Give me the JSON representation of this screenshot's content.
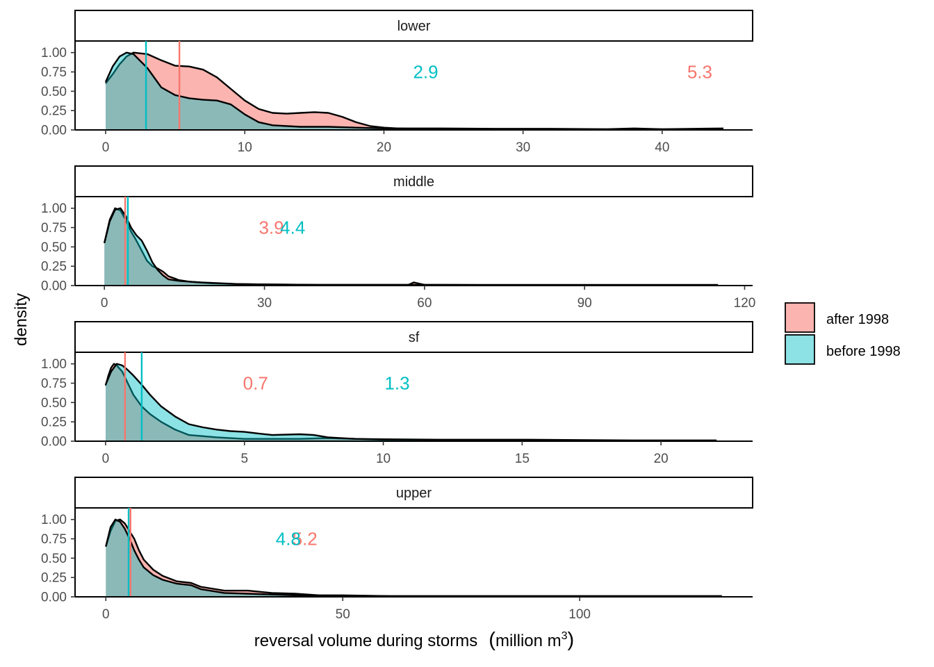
{
  "chart_data": {
    "type": "area",
    "subtype": "faceted density",
    "xlabel": "reversal volume during storms",
    "xlabel_unit_text": "million m",
    "xlabel_unit_sup": "3",
    "ylabel": "density",
    "grid": false,
    "legend_position": "right",
    "legend": [
      {
        "name": "after 1998",
        "color": "#F8766D"
      },
      {
        "name": "before 1998",
        "color": "#00BFC4"
      }
    ],
    "colors": {
      "after": "#F8766D",
      "before": "#00BFC4",
      "after_fill": "#F8766D",
      "before_fill": "#00BFC4",
      "outline": "#000000"
    },
    "y_ticks": [
      0,
      0.25,
      0.5,
      0.75,
      1.0
    ],
    "y_tick_labels": [
      "0.00",
      "0.25",
      "0.50",
      "0.75",
      "1.00"
    ],
    "ylim": [
      0,
      1.15
    ],
    "panels": [
      {
        "name": "lower",
        "xlim": [
          -2.2,
          46.5
        ],
        "x_ticks": [
          0,
          10,
          20,
          30,
          40
        ],
        "x_tick_labels": [
          "0",
          "10",
          "20",
          "30",
          "40"
        ],
        "median_label_y": 0.75,
        "series": [
          {
            "name": "after 1998",
            "median": 5.3,
            "median_label": "5.3",
            "median_label_x": 42.7,
            "x": [
              0,
              0.5,
              1,
              1.5,
              2,
              3,
              4,
              5,
              6,
              7,
              8,
              9,
              10,
              11,
              12,
              13,
              14,
              15,
              16,
              17,
              18,
              19,
              20,
              21,
              22,
              24,
              26,
              30,
              35,
              40,
              44.4
            ],
            "y": [
              0.6,
              0.72,
              0.85,
              0.95,
              1.0,
              0.98,
              0.9,
              0.83,
              0.82,
              0.78,
              0.68,
              0.53,
              0.38,
              0.27,
              0.22,
              0.21,
              0.22,
              0.23,
              0.22,
              0.17,
              0.1,
              0.05,
              0.03,
              0.02,
              0.015,
              0.01,
              0.01,
              0.008,
              0.008,
              0.008,
              0.008
            ]
          },
          {
            "name": "before 1998",
            "median": 2.9,
            "median_label": "2.9",
            "median_label_x": 23,
            "x": [
              0,
              0.5,
              1,
              1.5,
              2,
              3,
              4,
              5,
              6,
              7,
              8,
              9,
              10,
              11,
              12,
              14,
              16,
              18,
              20,
              22,
              24,
              28,
              32,
              36,
              38,
              40,
              44.4
            ],
            "y": [
              0.62,
              0.82,
              0.95,
              1.0,
              0.98,
              0.8,
              0.55,
              0.45,
              0.41,
              0.39,
              0.38,
              0.33,
              0.2,
              0.1,
              0.06,
              0.04,
              0.04,
              0.03,
              0.02,
              0.02,
              0.02,
              0.015,
              0.015,
              0.01,
              0.02,
              0.01,
              0.02
            ]
          }
        ]
      },
      {
        "name": "middle",
        "xlim": [
          -5.5,
          121.5
        ],
        "x_ticks": [
          0,
          30,
          60,
          90,
          120
        ],
        "x_tick_labels": [
          "0",
          "30",
          "60",
          "90",
          "120"
        ],
        "median_label_y": 0.75,
        "series": [
          {
            "name": "after 1998",
            "median": 3.9,
            "median_label": "3.9",
            "median_label_x": 31.3,
            "x": [
              0,
              1,
              2,
              3,
              4,
              5,
              6,
              7,
              8,
              9,
              10,
              11,
              12,
              14,
              16,
              18,
              20,
              25,
              30,
              40,
              50,
              57,
              58,
              60,
              70,
              80,
              100,
              115
            ],
            "y": [
              0.55,
              0.85,
              1.0,
              0.97,
              0.85,
              0.7,
              0.58,
              0.45,
              0.32,
              0.25,
              0.22,
              0.18,
              0.12,
              0.07,
              0.05,
              0.04,
              0.03,
              0.02,
              0.015,
              0.01,
              0.01,
              0.01,
              0.04,
              0.01,
              0.008,
              0.008,
              0.008,
              0.008
            ]
          },
          {
            "name": "before 1998",
            "median": 4.4,
            "median_label": "4.4",
            "median_label_x": 35.3,
            "x": [
              0,
              1,
              2,
              3,
              4,
              5,
              6,
              7,
              8,
              9,
              10,
              11,
              12,
              14,
              16,
              18,
              20,
              25,
              30,
              40,
              50,
              60,
              70,
              80,
              100,
              115
            ],
            "y": [
              0.55,
              0.83,
              0.98,
              1.0,
              0.9,
              0.75,
              0.65,
              0.58,
              0.45,
              0.3,
              0.2,
              0.13,
              0.08,
              0.06,
              0.05,
              0.04,
              0.035,
              0.02,
              0.015,
              0.01,
              0.01,
              0.01,
              0.008,
              0.008,
              0.008,
              0.008
            ]
          }
        ]
      },
      {
        "name": "sf",
        "xlim": [
          -1.1,
          23.3
        ],
        "x_ticks": [
          0,
          5,
          10,
          15,
          20
        ],
        "x_tick_labels": [
          "0",
          "5",
          "10",
          "15",
          "20"
        ],
        "median_label_y": 0.75,
        "series": [
          {
            "name": "after 1998",
            "median": 0.7,
            "median_label": "0.7",
            "median_label_x": 5.4,
            "x": [
              0,
              0.1,
              0.2,
              0.3,
              0.4,
              0.6,
              0.8,
              1.0,
              1.3,
              1.6,
              2.0,
              2.5,
              3.0,
              4.0,
              5.0,
              6.0,
              7.0,
              8.0,
              9.0,
              10,
              12,
              15,
              17,
              19,
              20,
              22
            ],
            "y": [
              0.72,
              0.85,
              0.95,
              1.0,
              0.98,
              0.9,
              0.75,
              0.6,
              0.45,
              0.35,
              0.25,
              0.15,
              0.08,
              0.05,
              0.03,
              0.03,
              0.03,
              0.04,
              0.03,
              0.02,
              0.01,
              0.01,
              0.01,
              0.01,
              0.01,
              0.01
            ]
          },
          {
            "name": "before 1998",
            "median": 1.3,
            "median_label": "1.3",
            "median_label_x": 10.5,
            "x": [
              0,
              0.2,
              0.4,
              0.6,
              0.8,
              1.0,
              1.3,
              1.6,
              2.0,
              2.5,
              3.0,
              3.5,
              4.0,
              4.5,
              5.0,
              5.5,
              6.0,
              7.0,
              7.5,
              8.0,
              9.0,
              10,
              12,
              15,
              17,
              19,
              22
            ],
            "y": [
              0.73,
              0.9,
              1.0,
              0.98,
              0.92,
              0.85,
              0.73,
              0.6,
              0.45,
              0.32,
              0.22,
              0.18,
              0.15,
              0.13,
              0.12,
              0.1,
              0.08,
              0.09,
              0.08,
              0.05,
              0.03,
              0.025,
              0.02,
              0.02,
              0.015,
              0.01,
              0.01
            ]
          }
        ]
      },
      {
        "name": "upper",
        "xlim": [
          -6.5,
          136.5
        ],
        "x_ticks": [
          0,
          50,
          100
        ],
        "x_tick_labels": [
          "0",
          "50",
          "100"
        ],
        "median_label_y": 0.75,
        "series": [
          {
            "name": "after 1998",
            "median": 5.2,
            "median_label": "5.2",
            "median_label_x": 42,
            "x": [
              0,
              1,
              2,
              3,
              4,
              5,
              6,
              7,
              8,
              10,
              12,
              15,
              18,
              20,
              25,
              30,
              35,
              40,
              45,
              50,
              60,
              70,
              80,
              100,
              120,
              130
            ],
            "y": [
              0.65,
              0.85,
              0.98,
              1.0,
              0.95,
              0.85,
              0.75,
              0.6,
              0.48,
              0.35,
              0.27,
              0.2,
              0.18,
              0.13,
              0.08,
              0.08,
              0.05,
              0.04,
              0.02,
              0.02,
              0.01,
              0.01,
              0.01,
              0.01,
              0.01,
              0.01
            ]
          },
          {
            "name": "before 1998",
            "median": 4.8,
            "median_label": "4.8",
            "median_label_x": 38.5,
            "x": [
              0,
              1,
              2,
              3,
              4,
              5,
              6,
              7,
              8,
              10,
              12,
              15,
              18,
              20,
              25,
              30,
              35,
              40,
              50,
              60,
              70,
              80,
              100,
              120,
              130
            ],
            "y": [
              0.65,
              0.9,
              1.0,
              0.97,
              0.88,
              0.75,
              0.6,
              0.48,
              0.38,
              0.28,
              0.22,
              0.17,
              0.15,
              0.1,
              0.05,
              0.04,
              0.03,
              0.02,
              0.015,
              0.01,
              0.01,
              0.01,
              0.01,
              0.01,
              0.01
            ]
          }
        ]
      }
    ]
  }
}
